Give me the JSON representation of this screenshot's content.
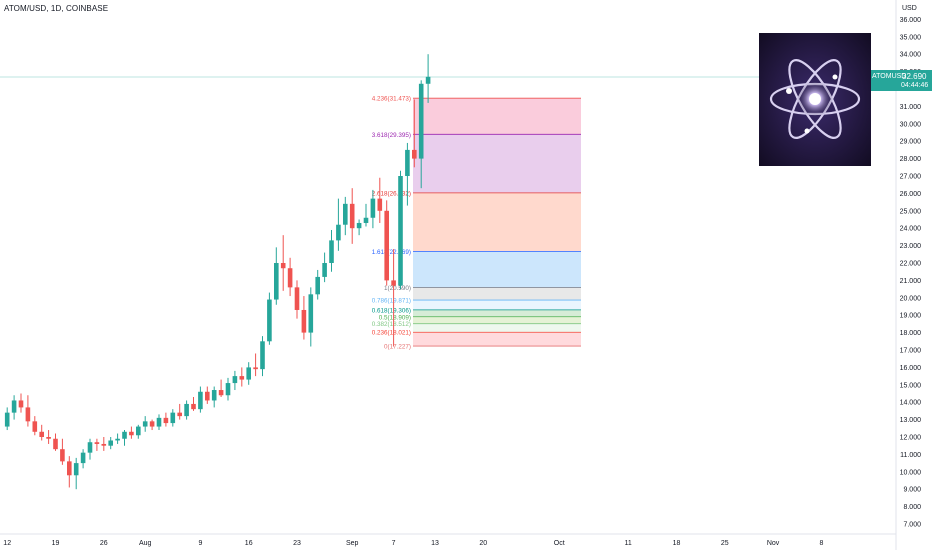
{
  "header": {
    "title": "ATOM/USD, 1D, COINBASE",
    "currency": "USD"
  },
  "price_tag": {
    "symbol": "ATOMUSD",
    "value": "32.690",
    "countdown": "04:44:46"
  },
  "colors": {
    "up": "#26a69a",
    "down": "#ef5350",
    "fib_line": "#6c6c6c",
    "axis_text": "#131722"
  },
  "chart_data": {
    "type": "candlestick",
    "title": "ATOM/USD, 1D, COINBASE",
    "ylim": [
      6.3,
      36.5
    ],
    "y_ticks": [
      "7.000",
      "8.000",
      "9.000",
      "10.000",
      "11.000",
      "12.000",
      "13.000",
      "14.000",
      "15.000",
      "16.000",
      "17.000",
      "18.000",
      "19.000",
      "20.000",
      "21.000",
      "22.000",
      "23.000",
      "24.000",
      "25.000",
      "26.000",
      "27.000",
      "28.000",
      "29.000",
      "30.000",
      "31.000",
      "33.000",
      "34.000",
      "35.000",
      "36.000"
    ],
    "x_ticks": [
      {
        "label": "12",
        "bar": 0
      },
      {
        "label": "19",
        "bar": 7
      },
      {
        "label": "26",
        "bar": 14
      },
      {
        "label": "Aug",
        "bar": 20
      },
      {
        "label": "9",
        "bar": 28
      },
      {
        "label": "16",
        "bar": 35
      },
      {
        "label": "23",
        "bar": 42
      },
      {
        "label": "Sep",
        "bar": 50
      },
      {
        "label": "7",
        "bar": 56
      },
      {
        "label": "13",
        "bar": 62
      },
      {
        "label": "20",
        "bar": 69
      },
      {
        "label": "Oct",
        "bar": 80
      },
      {
        "label": "11",
        "bar": 90
      },
      {
        "label": "18",
        "bar": 97
      },
      {
        "label": "25",
        "bar": 104
      },
      {
        "label": "Nov",
        "bar": 111
      },
      {
        "label": "8",
        "bar": 118
      }
    ],
    "candles": [
      [
        12.6,
        13.7,
        12.4,
        13.4
      ],
      [
        13.4,
        14.4,
        13.0,
        14.1
      ],
      [
        14.1,
        14.5,
        13.4,
        13.7
      ],
      [
        13.7,
        14.4,
        12.6,
        12.9
      ],
      [
        12.9,
        13.2,
        12.1,
        12.3
      ],
      [
        12.3,
        12.7,
        11.8,
        12.0
      ],
      [
        12.0,
        12.4,
        11.6,
        11.9
      ],
      [
        11.9,
        12.2,
        11.2,
        11.3
      ],
      [
        11.3,
        11.9,
        10.4,
        10.6
      ],
      [
        10.6,
        10.9,
        9.1,
        9.8
      ],
      [
        9.8,
        10.8,
        9.0,
        10.5
      ],
      [
        10.5,
        11.3,
        10.2,
        11.1
      ],
      [
        11.1,
        11.9,
        10.7,
        11.7
      ],
      [
        11.7,
        11.9,
        11.2,
        11.6
      ],
      [
        11.6,
        12.0,
        11.2,
        11.5
      ],
      [
        11.5,
        12.0,
        11.3,
        11.8
      ],
      [
        11.8,
        12.2,
        11.6,
        11.9
      ],
      [
        11.9,
        12.4,
        11.5,
        12.3
      ],
      [
        12.3,
        12.6,
        11.9,
        12.1
      ],
      [
        12.1,
        12.7,
        11.9,
        12.6
      ],
      [
        12.6,
        13.2,
        12.3,
        12.9
      ],
      [
        12.9,
        13.0,
        12.4,
        12.6
      ],
      [
        12.6,
        13.3,
        12.4,
        13.1
      ],
      [
        13.1,
        13.4,
        12.6,
        12.8
      ],
      [
        12.8,
        13.6,
        12.6,
        13.4
      ],
      [
        13.4,
        13.9,
        13.0,
        13.2
      ],
      [
        13.2,
        14.1,
        13.0,
        13.9
      ],
      [
        13.9,
        14.3,
        13.5,
        13.6
      ],
      [
        13.6,
        14.9,
        13.4,
        14.6
      ],
      [
        14.6,
        14.9,
        13.9,
        14.1
      ],
      [
        14.1,
        14.9,
        13.7,
        14.7
      ],
      [
        14.7,
        15.3,
        14.3,
        14.4
      ],
      [
        14.4,
        15.4,
        14.1,
        15.1
      ],
      [
        15.1,
        15.8,
        14.7,
        15.5
      ],
      [
        15.5,
        16.0,
        14.9,
        15.3
      ],
      [
        15.3,
        16.3,
        15.0,
        16.0
      ],
      [
        16.0,
        16.8,
        15.5,
        15.9
      ],
      [
        15.9,
        17.8,
        15.5,
        17.5
      ],
      [
        17.5,
        20.3,
        17.3,
        19.9
      ],
      [
        19.9,
        22.9,
        19.6,
        22.0
      ],
      [
        22.0,
        23.6,
        20.4,
        21.7
      ],
      [
        21.7,
        22.3,
        20.1,
        20.6
      ],
      [
        20.6,
        21.0,
        18.8,
        19.3
      ],
      [
        19.3,
        20.1,
        17.6,
        18.0
      ],
      [
        18.0,
        20.6,
        17.2,
        20.2
      ],
      [
        20.2,
        21.6,
        19.9,
        21.2
      ],
      [
        21.2,
        22.6,
        20.9,
        22.0
      ],
      [
        22.0,
        23.9,
        21.5,
        23.3
      ],
      [
        23.3,
        25.7,
        22.7,
        24.2
      ],
      [
        24.2,
        25.8,
        23.6,
        25.4
      ],
      [
        25.4,
        26.3,
        23.1,
        24.0
      ],
      [
        24.0,
        24.5,
        23.6,
        24.3
      ],
      [
        24.3,
        25.4,
        24.1,
        24.6
      ],
      [
        24.6,
        26.2,
        24.0,
        25.7
      ],
      [
        25.7,
        26.9,
        24.3,
        25.0
      ],
      [
        25.0,
        25.6,
        20.7,
        21.0
      ],
      [
        21.0,
        22.8,
        17.2,
        20.7
      ],
      [
        20.7,
        27.3,
        20.5,
        27.0
      ],
      [
        27.0,
        28.9,
        25.3,
        28.5
      ],
      [
        28.5,
        31.4,
        27.5,
        28.0
      ],
      [
        28.0,
        32.5,
        26.3,
        32.3
      ],
      [
        32.3,
        34.0,
        31.2,
        32.7
      ]
    ],
    "fib_levels": [
      {
        "ratio": "4.236",
        "price": 31.473,
        "label": "4.236(31.473)",
        "line": "#ef5350",
        "fill": "#f8bbd0"
      },
      {
        "ratio": "3.618",
        "price": 29.395,
        "label": "3.618(29.395)",
        "line": "#9c27b0",
        "fill": "#e1bee7"
      },
      {
        "ratio": "2.618",
        "price": 26.032,
        "label": "2.618(26.032)",
        "line": "#e53935",
        "fill": "#ffccbc"
      },
      {
        "ratio": "1.618",
        "price": 22.669,
        "label": "1.618(22.669)",
        "line": "#2962ff",
        "fill": "#bbdefb"
      },
      {
        "ratio": "1",
        "price": 20.59,
        "label": "1(20.590)",
        "line": "#787b86",
        "fill": "#e0e0e0"
      },
      {
        "ratio": "0.786",
        "price": 19.871,
        "label": "0.786(19.871)",
        "line": "#64b5f6",
        "fill": "#e3f2fd"
      },
      {
        "ratio": "0.618",
        "price": 19.306,
        "label": "0.618(19.306)",
        "line": "#009688",
        "fill": "#c8e6c9"
      },
      {
        "ratio": "0.5",
        "price": 18.909,
        "label": "0.5(18.909)",
        "line": "#4caf50",
        "fill": "#dcedc8"
      },
      {
        "ratio": "0.382",
        "price": 18.512,
        "label": "0.382(18.512)",
        "line": "#81c784",
        "fill": "#e8f5e9"
      },
      {
        "ratio": "0.236",
        "price": 18.021,
        "label": "0.236(18.021)",
        "line": "#f44336",
        "fill": "#ffcdd2"
      },
      {
        "ratio": "0",
        "price": 17.227,
        "label": "0(17.227)",
        "line": "#e57373",
        "fill": "#ffffff"
      }
    ],
    "last_price": 32.69
  }
}
